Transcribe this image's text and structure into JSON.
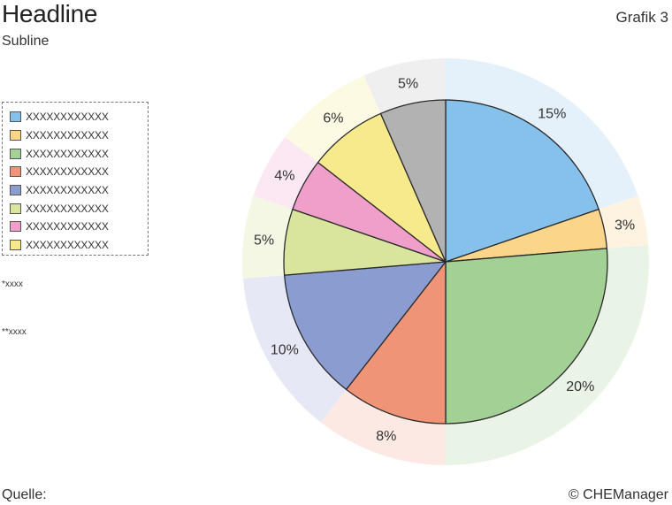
{
  "header": {
    "headline": "Headline",
    "subline": "Subline",
    "grafik": "Grafik 3"
  },
  "notes": {
    "note1": "*xxxx",
    "note2": "**xxxx"
  },
  "footer": {
    "source": "Quelle:",
    "copyright": "© CHEManager"
  },
  "legend": {
    "items": [
      {
        "label": "XXXXXXXXXXXX",
        "color": "#86c1ec"
      },
      {
        "label": "XXXXXXXXXXXX",
        "color": "#fbd68a"
      },
      {
        "label": "XXXXXXXXXXXX",
        "color": "#a2d095"
      },
      {
        "label": "XXXXXXXXXXXX",
        "color": "#f09478"
      },
      {
        "label": "XXXXXXXXXXXX",
        "color": "#8a9cd0"
      },
      {
        "label": "XXXXXXXXXXXX",
        "color": "#d9e49d"
      },
      {
        "label": "XXXXXXXXXXXX",
        "color": "#ef9fc9"
      },
      {
        "label": "XXXXXXXXXXXX",
        "color": "#f6ea8c"
      }
    ]
  },
  "chart_data": {
    "type": "pie",
    "labels": [
      "15%",
      "3%",
      "20%",
      "8%",
      "10%",
      "5%",
      "4%",
      "6%",
      "5%"
    ],
    "values": [
      15,
      3,
      20,
      8,
      10,
      5,
      4,
      6,
      5
    ],
    "colors": [
      "#86c1ec",
      "#fbd68a",
      "#a2d095",
      "#f09478",
      "#8a9cd0",
      "#d9e49d",
      "#ef9fc9",
      "#f6ea8c",
      "#b3b2b2"
    ],
    "ring_colors": [
      "#e5f1fa",
      "#fdf3e0",
      "#e9f3e6",
      "#fde9e3",
      "#e6e9f5",
      "#f5f7e5",
      "#fce8f2",
      "#fdfae4",
      "#efefef"
    ]
  }
}
